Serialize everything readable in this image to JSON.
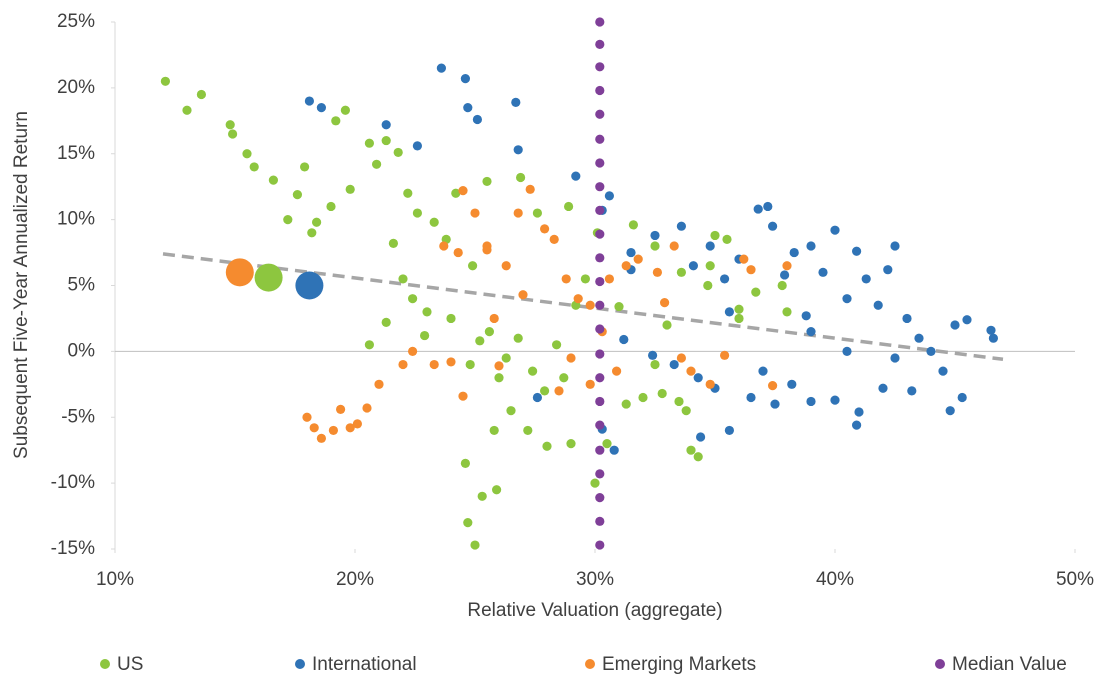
{
  "chart_data": {
    "type": "scatter",
    "x_label": "Relative Valuation (aggregate)",
    "y_label": "Subsequent Five-Year Annualized Return",
    "xlim": [
      10,
      50
    ],
    "xticks": [
      {
        "value": 10,
        "label": "10%"
      },
      {
        "value": 20,
        "label": "20%"
      },
      {
        "value": 30,
        "label": "30%"
      },
      {
        "value": 40,
        "label": "40%"
      },
      {
        "value": 50,
        "label": "50%"
      }
    ],
    "ylim": [
      -15,
      25
    ],
    "yticks": [
      {
        "value": 25,
        "label": "25%"
      },
      {
        "value": 20,
        "label": "20%"
      },
      {
        "value": 15,
        "label": "15%"
      },
      {
        "value": 10,
        "label": "10%"
      },
      {
        "value": 5,
        "label": "5%"
      },
      {
        "value": 0,
        "label": "0%"
      },
      {
        "value": -5,
        "label": "-5%"
      },
      {
        "value": -10,
        "label": "-10%"
      },
      {
        "value": -15,
        "label": "-15%"
      }
    ],
    "legend": "bottom",
    "series": [
      {
        "name": "US",
        "color": "#8dc63f",
        "x": [
          12.1,
          13,
          13.6,
          14.8,
          14.9,
          15.5,
          15.8,
          16.6,
          17.2,
          17.6,
          17.9,
          18.2,
          18.4,
          19,
          19.2,
          19.6,
          19.8,
          20.6,
          20.9,
          21.3,
          21.8,
          22.2,
          22.6,
          23.3,
          23.8,
          24.2,
          21.6,
          22,
          22.4,
          23,
          21.3,
          20.6,
          22.9,
          24,
          24.8,
          25.2,
          25.6,
          26,
          26.3,
          26.8,
          27.4,
          27.9,
          28.4,
          28.7,
          29.2,
          29.6,
          30.1,
          31,
          32,
          32.5,
          33,
          33.5,
          34,
          34.3,
          34.7,
          35,
          35.5,
          36,
          36.7,
          38,
          24.6,
          24.7,
          25,
          25.3,
          25.8,
          25.9,
          26.5,
          27.2,
          28,
          29,
          30,
          30.5,
          31.3,
          32.8,
          33.8,
          24.9,
          25.5,
          26.9,
          27.6,
          28.9,
          31.6,
          32.5,
          33.6,
          34.8,
          36,
          37.8
        ],
        "values": [
          20.5,
          18.3,
          19.5,
          17.2,
          16.5,
          15,
          14,
          13,
          10,
          11.9,
          14,
          9,
          9.8,
          11,
          17.5,
          18.3,
          12.3,
          15.8,
          14.2,
          16,
          15.1,
          12,
          10.5,
          9.8,
          8.5,
          12,
          8.2,
          5.5,
          4,
          3,
          2.2,
          0.5,
          1.2,
          2.5,
          -1,
          0.8,
          1.5,
          -2,
          -0.5,
          1,
          -1.5,
          -3,
          0.5,
          -2,
          3.5,
          5.5,
          9,
          3.4,
          -3.5,
          -1,
          2,
          -3.8,
          -7.5,
          -8,
          5,
          8.8,
          8.5,
          2.5,
          4.5,
          3,
          -8.5,
          -13,
          -14.7,
          -11,
          -6,
          -10.5,
          -4.5,
          -6,
          -7.2,
          -7,
          -10,
          -7,
          -4,
          -3.2,
          -4.5,
          6.5,
          12.9,
          13.2,
          10.5,
          11,
          9.6,
          8,
          6,
          6.5,
          3.2,
          5
        ]
      },
      {
        "name": "International",
        "color": "#2f73b6",
        "x": [
          18.1,
          18.6,
          21.3,
          22.6,
          23.6,
          24.6,
          24.7,
          25.1,
          26.7,
          26.8,
          29.2,
          30.6,
          31.5,
          32.5,
          33.6,
          34.1,
          34.8,
          35.4,
          36,
          36.8,
          37.2,
          37.4,
          37.9,
          38.3,
          39,
          39.5,
          40,
          40.5,
          40.9,
          41.3,
          41.8,
          42.2,
          42.5,
          43,
          43.5,
          44,
          44.5,
          45,
          45.5,
          46.5,
          46.6,
          44.8,
          45.3,
          43.2,
          42,
          41,
          40.9,
          40,
          39,
          38.2,
          37.5,
          36.5,
          35.6,
          35,
          34.3,
          33.3,
          34.4,
          32.4,
          31.2,
          30.3,
          30.8,
          27.6,
          37,
          39,
          40.5,
          42.5,
          35.6,
          38.8,
          30.3,
          31.5
        ],
        "values": [
          19,
          18.5,
          17.2,
          15.6,
          21.5,
          20.7,
          18.5,
          17.6,
          18.9,
          15.3,
          13.3,
          11.8,
          7.5,
          8.8,
          9.5,
          6.5,
          8,
          5.5,
          7,
          10.8,
          11,
          9.5,
          5.8,
          7.5,
          8,
          6,
          9.2,
          4,
          7.6,
          5.5,
          3.5,
          6.2,
          8,
          2.5,
          1,
          0,
          -1.5,
          2,
          2.4,
          1.6,
          1,
          -4.5,
          -3.5,
          -3,
          -2.8,
          -4.6,
          -5.6,
          -3.7,
          -3.8,
          -2.5,
          -4,
          -3.5,
          -6,
          -2.8,
          -2,
          -1,
          -6.5,
          -0.3,
          0.9,
          -5.9,
          -7.5,
          -3.5,
          -1.5,
          1.5,
          0,
          -0.5,
          3,
          2.7,
          10.7,
          6.2
        ]
      },
      {
        "name": "Emerging Markets",
        "color": "#f58b2f",
        "x": [
          18,
          18.3,
          18.6,
          19.1,
          19.4,
          19.8,
          20.1,
          20.5,
          21,
          22,
          22.4,
          23.3,
          24.5,
          24,
          23.7,
          24.3,
          24.5,
          25,
          25.5,
          26.3,
          26.8,
          27.3,
          27.9,
          28.3,
          28.8,
          29.3,
          29.8,
          30.3,
          30.6,
          31.3,
          31.8,
          32.6,
          32.9,
          33.3,
          33.6,
          34,
          34.8,
          35.4,
          36.2,
          36.5,
          37.4,
          38,
          29.8,
          30.9,
          29,
          28.5,
          26,
          25.8,
          27,
          25.5
        ],
        "values": [
          -5,
          -5.8,
          -6.6,
          -6,
          -4.4,
          -5.8,
          -5.5,
          -4.3,
          -2.5,
          -1,
          0,
          -1,
          -3.4,
          -0.8,
          8,
          7.5,
          12.2,
          10.5,
          8,
          6.5,
          10.5,
          12.3,
          9.3,
          8.5,
          5.5,
          4,
          3.5,
          1.5,
          5.5,
          6.5,
          7,
          6,
          3.7,
          8,
          -0.5,
          -1.5,
          -2.5,
          -0.3,
          7,
          6.2,
          -2.6,
          6.5,
          -2.5,
          -1.5,
          -0.5,
          -3,
          -1.1,
          2.5,
          4.3,
          7.7
        ]
      },
      {
        "name": "Median Value",
        "color": "#7f3f98",
        "x": [
          30.2,
          30.2,
          30.2,
          30.2,
          30.2,
          30.2,
          30.2,
          30.2,
          30.2,
          30.2,
          30.2,
          30.2,
          30.2,
          30.2,
          30.2,
          30.2,
          30.2,
          30.2,
          30.2,
          30.2,
          30.2,
          30.2,
          30.2
        ],
        "values": [
          25,
          23.3,
          21.6,
          19.8,
          18,
          16.1,
          14.3,
          12.5,
          10.7,
          8.9,
          7.1,
          5.3,
          3.5,
          1.7,
          -0.2,
          -2,
          -3.8,
          -5.6,
          -7.5,
          -9.3,
          -11.1,
          -12.9,
          -14.7
        ]
      }
    ],
    "highlights": [
      {
        "x": 15.2,
        "y": 6.0,
        "color": "#f58b2f"
      },
      {
        "x": 16.4,
        "y": 5.6,
        "color": "#8dc63f"
      },
      {
        "x": 18.1,
        "y": 5.0,
        "color": "#2f73b6"
      }
    ],
    "trendline": {
      "x": [
        12,
        47
      ],
      "values": [
        7.4,
        -0.6
      ],
      "color": "#a6a6a6"
    }
  }
}
